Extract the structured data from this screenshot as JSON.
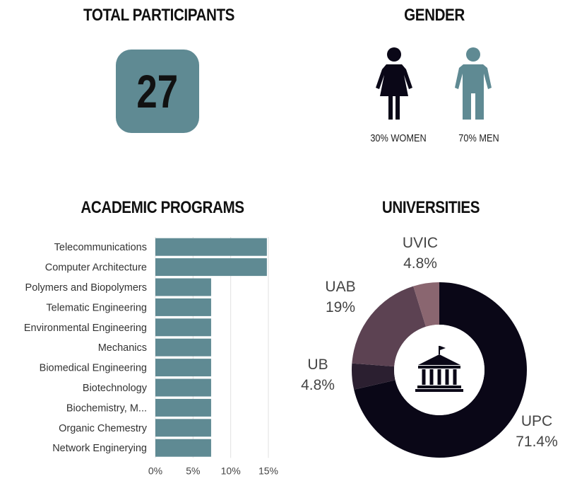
{
  "total": {
    "heading": "TOTAL PARTICIPANTS",
    "value": "27"
  },
  "gender": {
    "heading": "GENDER",
    "women_label": "30% WOMEN",
    "men_label": "70% MEN",
    "women_color": "#0a0717",
    "men_color": "#5f8a93"
  },
  "programs": {
    "heading": "ACADEMIC PROGRAMS"
  },
  "universities": {
    "heading": "UNIVERSITIES",
    "center_icon": "university-building-icon"
  },
  "chart_data": [
    {
      "type": "bar",
      "orientation": "horizontal",
      "title": "ACADEMIC PROGRAMS",
      "categories": [
        "Telecommunications",
        "Computer Architecture",
        "Polymers and Biopolymers",
        "Telematic Engineering",
        "Environmental Engineering",
        "Mechanics",
        "Biomedical Engineering",
        "Biotechnology",
        "Biochemistry, M...",
        "Organic Chemestry",
        "Network Enginerying"
      ],
      "values": [
        14.8,
        14.8,
        7.4,
        7.4,
        7.4,
        7.4,
        7.4,
        7.4,
        7.4,
        7.4,
        7.4
      ],
      "xlim": [
        0,
        15
      ],
      "xticks": [
        "0%",
        "5%",
        "10%",
        "15%"
      ],
      "xtick_values": [
        0,
        5,
        10,
        15
      ],
      "grid": true,
      "color": "#5f8a93"
    },
    {
      "type": "pie",
      "variant": "donut",
      "title": "UNIVERSITIES",
      "slices": [
        {
          "label": "UPC",
          "value": 71.4,
          "display": "71.4%",
          "color": "#0a0717"
        },
        {
          "label": "UB",
          "value": 4.8,
          "display": "4.8%",
          "color": "#2b1f30"
        },
        {
          "label": "UAB",
          "value": 19,
          "display": "19%",
          "color": "#5c4252"
        },
        {
          "label": "UVIC",
          "value": 4.8,
          "display": "4.8%",
          "color": "#8a6670"
        }
      ]
    }
  ]
}
